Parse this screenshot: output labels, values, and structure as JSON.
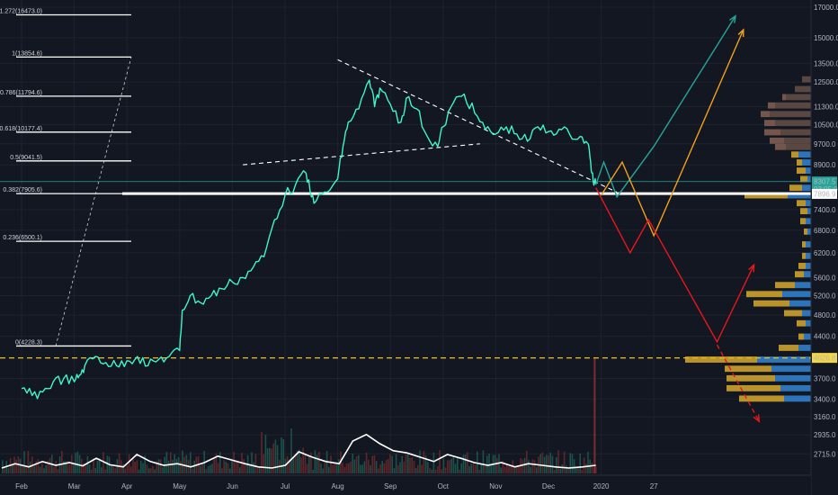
{
  "chart_data": {
    "type": "line",
    "title": "",
    "xlabel": "",
    "ylabel": "",
    "y_scale": "log",
    "ylim": [
      2600,
      17000
    ],
    "y_ticks": [
      "17000.0",
      "15000.0",
      "13500.0",
      "12500.0",
      "11300.0",
      "10500.0",
      "9700.0",
      "8900.0",
      "7400.0",
      "6800.0",
      "6200.0",
      "5600.0",
      "5200.0",
      "4800.0",
      "4400.0",
      "3700.0",
      "3400.0",
      "3160.0",
      "2935.0",
      "2715.0"
    ],
    "x_ticks": [
      "Feb",
      "Mar",
      "Apr",
      "May",
      "Jun",
      "Jul",
      "Aug",
      "Sep",
      "Oct",
      "Nov",
      "Dec",
      "2020",
      "27"
    ],
    "fib_levels": [
      {
        "label": "1.272(16473.0)",
        "value": 16473.0
      },
      {
        "label": "1(13854.6)",
        "value": 13854.6
      },
      {
        "label": "0.786(11794.6)",
        "value": 11794.6
      },
      {
        "label": "0.618(10177.4)",
        "value": 10177.4
      },
      {
        "label": "0.5(9041.5)",
        "value": 9041.5
      },
      {
        "label": "0.382(7905.6)",
        "value": 7905.6
      },
      {
        "label": "0.236(6500.1)",
        "value": 6500.1
      },
      {
        "label": "0(4228.3)",
        "value": 4228.3
      }
    ],
    "price_badges": [
      {
        "text": "8307.5",
        "color": "#26a69a",
        "value": 8307.5
      },
      {
        "text": "03:05:01",
        "color": "#26a69a",
        "value": 8050
      },
      {
        "text": "7896.9",
        "color": "#ffffff",
        "value": 7896.9
      },
      {
        "text": "4026.8",
        "color": "#f5d742",
        "value": 4026.8
      }
    ],
    "horizontal_lines": [
      {
        "value": 7905.6,
        "color": "#ffffff",
        "style": "solid"
      },
      {
        "value": 4026.8,
        "color": "#e0b418",
        "style": "dashed"
      }
    ],
    "series": [
      {
        "values": [
          [
            0,
            3550
          ],
          [
            0.2,
            3450
          ],
          [
            0.4,
            3500
          ],
          [
            0.6,
            3650
          ],
          [
            0.8,
            3700
          ],
          [
            1.0,
            3650
          ],
          [
            1.1,
            3750
          ],
          [
            1.2,
            3900
          ],
          [
            1.4,
            4050
          ],
          [
            1.6,
            3950
          ],
          [
            1.8,
            3900
          ],
          [
            2.0,
            3980
          ],
          [
            2.2,
            4050
          ],
          [
            2.4,
            3900
          ],
          [
            2.6,
            4000
          ],
          [
            2.8,
            4050
          ],
          [
            3.0,
            4150
          ],
          [
            3.05,
            4900
          ],
          [
            3.2,
            5200
          ],
          [
            3.4,
            5050
          ],
          [
            3.6,
            5200
          ],
          [
            3.8,
            5350
          ],
          [
            4.0,
            5500
          ],
          [
            4.2,
            5600
          ],
          [
            4.4,
            5850
          ],
          [
            4.6,
            6100
          ],
          [
            4.8,
            7100
          ],
          [
            5.0,
            7850
          ],
          [
            5.2,
            8200
          ],
          [
            5.4,
            8600
          ],
          [
            5.5,
            7800
          ],
          [
            5.6,
            7700
          ],
          [
            5.8,
            7950
          ],
          [
            6.0,
            8400
          ],
          [
            6.1,
            9600
          ],
          [
            6.2,
            10600
          ],
          [
            6.4,
            11200
          ],
          [
            6.6,
            12600
          ],
          [
            6.7,
            11300
          ],
          [
            6.8,
            12200
          ],
          [
            7.0,
            11400
          ],
          [
            7.2,
            10600
          ],
          [
            7.3,
            11700
          ],
          [
            7.5,
            11200
          ],
          [
            7.7,
            10000
          ],
          [
            7.9,
            9600
          ],
          [
            8.0,
            10400
          ],
          [
            8.2,
            11500
          ],
          [
            8.4,
            11900
          ],
          [
            8.6,
            11000
          ],
          [
            8.8,
            10300
          ],
          [
            9.0,
            10100
          ],
          [
            9.2,
            10400
          ],
          [
            9.4,
            10100
          ],
          [
            9.6,
            9800
          ],
          [
            9.8,
            10400
          ],
          [
            10.0,
            10200
          ],
          [
            10.2,
            10300
          ],
          [
            10.4,
            10100
          ],
          [
            10.6,
            10000
          ],
          [
            10.75,
            9700
          ],
          [
            10.8,
            9000
          ],
          [
            10.85,
            8300
          ],
          [
            10.9,
            8200
          ]
        ]
      }
    ],
    "volume_ma": [
      0.1,
      0.18,
      0.12,
      0.22,
      0.15,
      0.2,
      0.14,
      0.28,
      0.16,
      0.12,
      0.35,
      0.22,
      0.15,
      0.18,
      0.12,
      0.2,
      0.32,
      0.25,
      0.18,
      0.12,
      0.1,
      0.15,
      0.4,
      0.3,
      0.22,
      0.18,
      0.6,
      0.72,
      0.55,
      0.42,
      0.38,
      0.3,
      0.22,
      0.35,
      0.28,
      0.2,
      0.15,
      0.2,
      0.12,
      0.18,
      0.15,
      0.12,
      0.1,
      0.12,
      0.15
    ]
  }
}
